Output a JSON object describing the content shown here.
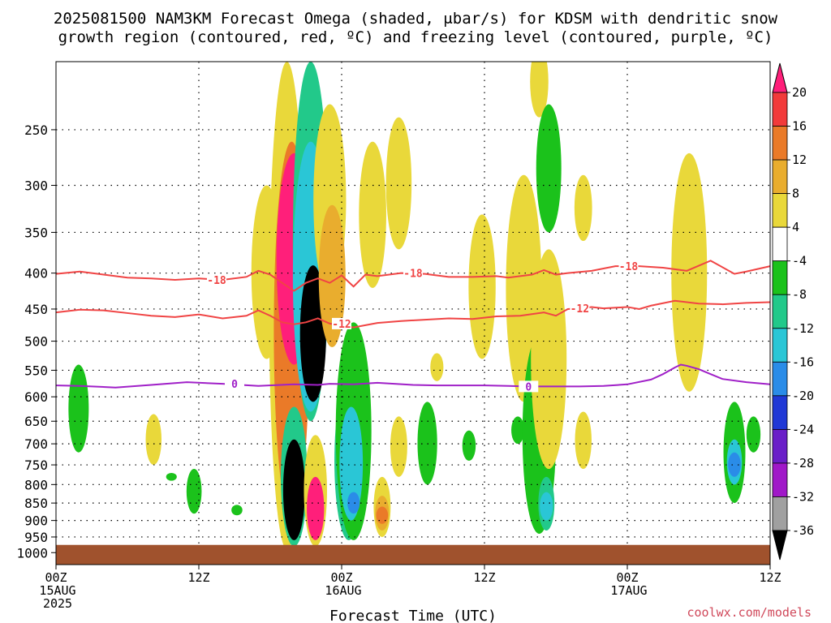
{
  "chart_data": {
    "type": "heatmap",
    "title_line1": "2025081500 NAM3KM Forecast Omega (shaded, μbar/s) for KDSM with dendritic snow",
    "title_line2": "growth region (contoured, red, ºC) and freezing level (contoured, purple, ºC)",
    "xlabel": "Forecast Time (UTC)",
    "credit": "coolwx.com/models",
    "x_ticks": [
      {
        "hour": 0,
        "lines": [
          "00Z",
          "15AUG",
          "2025"
        ]
      },
      {
        "hour": 12,
        "lines": [
          "12Z"
        ]
      },
      {
        "hour": 24,
        "lines": [
          "00Z",
          "16AUG"
        ]
      },
      {
        "hour": 36,
        "lines": [
          "12Z"
        ]
      },
      {
        "hour": 48,
        "lines": [
          "00Z",
          "17AUG"
        ]
      },
      {
        "hour": 60,
        "lines": [
          "12Z"
        ]
      }
    ],
    "xlim": [
      0,
      60
    ],
    "y_ticks": [
      250,
      300,
      350,
      400,
      450,
      500,
      550,
      600,
      650,
      700,
      750,
      800,
      850,
      900,
      950,
      1000
    ],
    "ylim": [
      200,
      1040
    ],
    "ground_level_hPa": 975,
    "colorbar": {
      "labels": [
        "20",
        "16",
        "12",
        "8",
        "4",
        "-4",
        "-8",
        "-12",
        "-16",
        "-20",
        "-24",
        "-28",
        "-32",
        "-36"
      ],
      "bands": [
        "#ff1f7a",
        "#f23a3a",
        "#ea7a28",
        "#e9ad2e",
        "#e9d83a",
        "#ffffff",
        "#1bc21b",
        "#22c98a",
        "#2ac6d6",
        "#2a8ce8",
        "#2038d6",
        "#6a1ec8",
        "#a018c8",
        "#a0a0a0",
        "#000000"
      ]
    },
    "contours": {
      "freezing_level": {
        "level": "0",
        "color": "#a020c8",
        "points": [
          [
            0,
            578
          ],
          [
            2,
            579
          ],
          [
            5,
            582
          ],
          [
            8,
            577
          ],
          [
            11,
            572
          ],
          [
            14,
            575
          ],
          [
            17,
            579
          ],
          [
            20,
            576
          ],
          [
            22,
            577
          ],
          [
            23,
            575
          ],
          [
            25,
            576
          ],
          [
            27,
            573
          ],
          [
            30,
            577
          ],
          [
            32,
            578
          ],
          [
            34,
            578
          ],
          [
            36,
            578
          ],
          [
            38,
            579
          ],
          [
            40,
            580
          ],
          [
            42,
            580
          ],
          [
            44,
            580
          ],
          [
            46,
            579
          ],
          [
            48,
            576
          ],
          [
            50,
            567
          ],
          [
            51,
            557
          ],
          [
            52,
            545
          ],
          [
            52.5,
            540
          ],
          [
            53,
            542
          ],
          [
            54,
            548
          ],
          [
            55,
            557
          ],
          [
            56,
            566
          ],
          [
            58,
            572
          ],
          [
            60,
            576
          ]
        ]
      },
      "dgz_minus12": {
        "level": "-12",
        "color": "#f04444",
        "points": [
          [
            0,
            455
          ],
          [
            2,
            451
          ],
          [
            4,
            452
          ],
          [
            6,
            456
          ],
          [
            8,
            460
          ],
          [
            10,
            462
          ],
          [
            12,
            458
          ],
          [
            14,
            464
          ],
          [
            16,
            460
          ],
          [
            17,
            452
          ],
          [
            18,
            460
          ],
          [
            19,
            470
          ],
          [
            20,
            473
          ],
          [
            21,
            470
          ],
          [
            22,
            464
          ],
          [
            23,
            472
          ],
          [
            25,
            478
          ],
          [
            27,
            471
          ],
          [
            29,
            468
          ],
          [
            31,
            466
          ],
          [
            33,
            464
          ],
          [
            35,
            465
          ],
          [
            37,
            461
          ],
          [
            39,
            460
          ],
          [
            41,
            455
          ],
          [
            42,
            460
          ],
          [
            43,
            450
          ],
          [
            44,
            449
          ],
          [
            45,
            447
          ],
          [
            46,
            449
          ],
          [
            48,
            447
          ],
          [
            49,
            450
          ],
          [
            50,
            445
          ],
          [
            52,
            438
          ],
          [
            54,
            442
          ],
          [
            56,
            443
          ],
          [
            58,
            441
          ],
          [
            60,
            440
          ]
        ]
      },
      "dgz_minus18": {
        "level": "-18",
        "color": "#f04444",
        "points": [
          [
            0,
            401
          ],
          [
            2,
            398
          ],
          [
            4,
            402
          ],
          [
            6,
            406
          ],
          [
            8,
            407
          ],
          [
            10,
            409
          ],
          [
            12,
            407
          ],
          [
            14,
            409
          ],
          [
            16,
            405
          ],
          [
            17,
            397
          ],
          [
            18,
            402
          ],
          [
            19,
            413
          ],
          [
            20,
            424
          ],
          [
            21,
            413
          ],
          [
            22,
            407
          ],
          [
            23,
            413
          ],
          [
            24,
            403
          ],
          [
            25,
            418
          ],
          [
            26,
            402
          ],
          [
            27,
            404
          ],
          [
            29,
            400
          ],
          [
            31,
            401
          ],
          [
            33,
            405
          ],
          [
            35,
            405
          ],
          [
            37,
            404
          ],
          [
            38,
            406
          ],
          [
            40,
            402
          ],
          [
            41,
            396
          ],
          [
            42,
            402
          ],
          [
            43,
            400
          ],
          [
            45,
            397
          ],
          [
            47,
            391
          ],
          [
            49,
            391
          ],
          [
            51,
            393
          ],
          [
            53,
            397
          ],
          [
            55,
            384
          ],
          [
            57,
            401
          ],
          [
            58,
            398
          ],
          [
            60,
            391
          ]
        ]
      }
    },
    "omega_features": [
      {
        "hour": 1.9,
        "p_top": 540,
        "p_bot": 720,
        "value": -6
      },
      {
        "hour": 8.2,
        "p_top": 635,
        "p_bot": 750,
        "value": 5
      },
      {
        "hour": 11.6,
        "p_top": 760,
        "p_bot": 880,
        "value": -6
      },
      {
        "hour": 9.7,
        "p_top": 770,
        "p_bot": 790,
        "value": -6
      },
      {
        "hour": 15.2,
        "p_top": 855,
        "p_bot": 885,
        "value": -6
      },
      {
        "hour": 17.7,
        "p_top": 300,
        "p_bot": 530,
        "value": 5
      },
      {
        "hour": 19.4,
        "p_top": 200,
        "p_bot": 990,
        "value": 5
      },
      {
        "hour": 19.8,
        "p_top": 260,
        "p_bot": 900,
        "value": 12
      },
      {
        "hour": 20.0,
        "p_top": 270,
        "p_bot": 540,
        "value": 22
      },
      {
        "hour": 20.0,
        "p_top": 620,
        "p_bot": 980,
        "value": -8
      },
      {
        "hour": 20.0,
        "p_top": 690,
        "p_bot": 960,
        "value": -40
      },
      {
        "hour": 21.4,
        "p_top": 200,
        "p_bot": 650,
        "value": -8
      },
      {
        "hour": 21.4,
        "p_top": 260,
        "p_bot": 630,
        "value": -14
      },
      {
        "hour": 21.6,
        "p_top": 390,
        "p_bot": 610,
        "value": -40
      },
      {
        "hour": 21.8,
        "p_top": 680,
        "p_bot": 980,
        "value": 5
      },
      {
        "hour": 21.8,
        "p_top": 780,
        "p_bot": 960,
        "value": 22
      },
      {
        "hour": 23.0,
        "p_top": 230,
        "p_bot": 430,
        "value": 5
      },
      {
        "hour": 23.2,
        "p_top": 320,
        "p_bot": 510,
        "value": 9
      },
      {
        "hour": 24.6,
        "p_top": 570,
        "p_bot": 960,
        "value": -8
      },
      {
        "hour": 25.0,
        "p_top": 470,
        "p_bot": 960,
        "value": -7
      },
      {
        "hour": 24.8,
        "p_top": 620,
        "p_bot": 900,
        "value": -14
      },
      {
        "hour": 25.0,
        "p_top": 820,
        "p_bot": 880,
        "value": -18
      },
      {
        "hour": 26.6,
        "p_top": 260,
        "p_bot": 420,
        "value": 5
      },
      {
        "hour": 27.4,
        "p_top": 780,
        "p_bot": 950,
        "value": 5
      },
      {
        "hour": 27.4,
        "p_top": 830,
        "p_bot": 930,
        "value": 10
      },
      {
        "hour": 27.4,
        "p_top": 860,
        "p_bot": 910,
        "value": 15
      },
      {
        "hour": 28.8,
        "p_top": 640,
        "p_bot": 780,
        "value": 5
      },
      {
        "hour": 28.8,
        "p_top": 240,
        "p_bot": 370,
        "value": 5
      },
      {
        "hour": 31.2,
        "p_top": 610,
        "p_bot": 800,
        "value": -6
      },
      {
        "hour": 32.0,
        "p_top": 520,
        "p_bot": 570,
        "value": 5
      },
      {
        "hour": 34.7,
        "p_top": 670,
        "p_bot": 740,
        "value": -6
      },
      {
        "hour": 35.8,
        "p_top": 330,
        "p_bot": 530,
        "value": 5
      },
      {
        "hour": 39.3,
        "p_top": 290,
        "p_bot": 610,
        "value": 5
      },
      {
        "hour": 38.8,
        "p_top": 640,
        "p_bot": 700,
        "value": -6
      },
      {
        "hour": 40.6,
        "p_top": 490,
        "p_bot": 940,
        "value": -6
      },
      {
        "hour": 41.2,
        "p_top": 780,
        "p_bot": 930,
        "value": -9
      },
      {
        "hour": 41.2,
        "p_top": 820,
        "p_bot": 900,
        "value": -14
      },
      {
        "hour": 40.6,
        "p_top": 190,
        "p_bot": 240,
        "value": 5
      },
      {
        "hour": 41.4,
        "p_top": 230,
        "p_bot": 350,
        "value": -6
      },
      {
        "hour": 41.4,
        "p_top": 370,
        "p_bot": 760,
        "value": 5
      },
      {
        "hour": 44.3,
        "p_top": 290,
        "p_bot": 360,
        "value": 5
      },
      {
        "hour": 44.3,
        "p_top": 630,
        "p_bot": 760,
        "value": 5
      },
      {
        "hour": 53.2,
        "p_top": 270,
        "p_bot": 590,
        "value": 5
      },
      {
        "hour": 57.0,
        "p_top": 610,
        "p_bot": 850,
        "value": -6
      },
      {
        "hour": 57.0,
        "p_top": 690,
        "p_bot": 800,
        "value": -13
      },
      {
        "hour": 57.0,
        "p_top": 720,
        "p_bot": 780,
        "value": -19
      },
      {
        "hour": 58.6,
        "p_top": 640,
        "p_bot": 720,
        "value": -6
      }
    ]
  }
}
